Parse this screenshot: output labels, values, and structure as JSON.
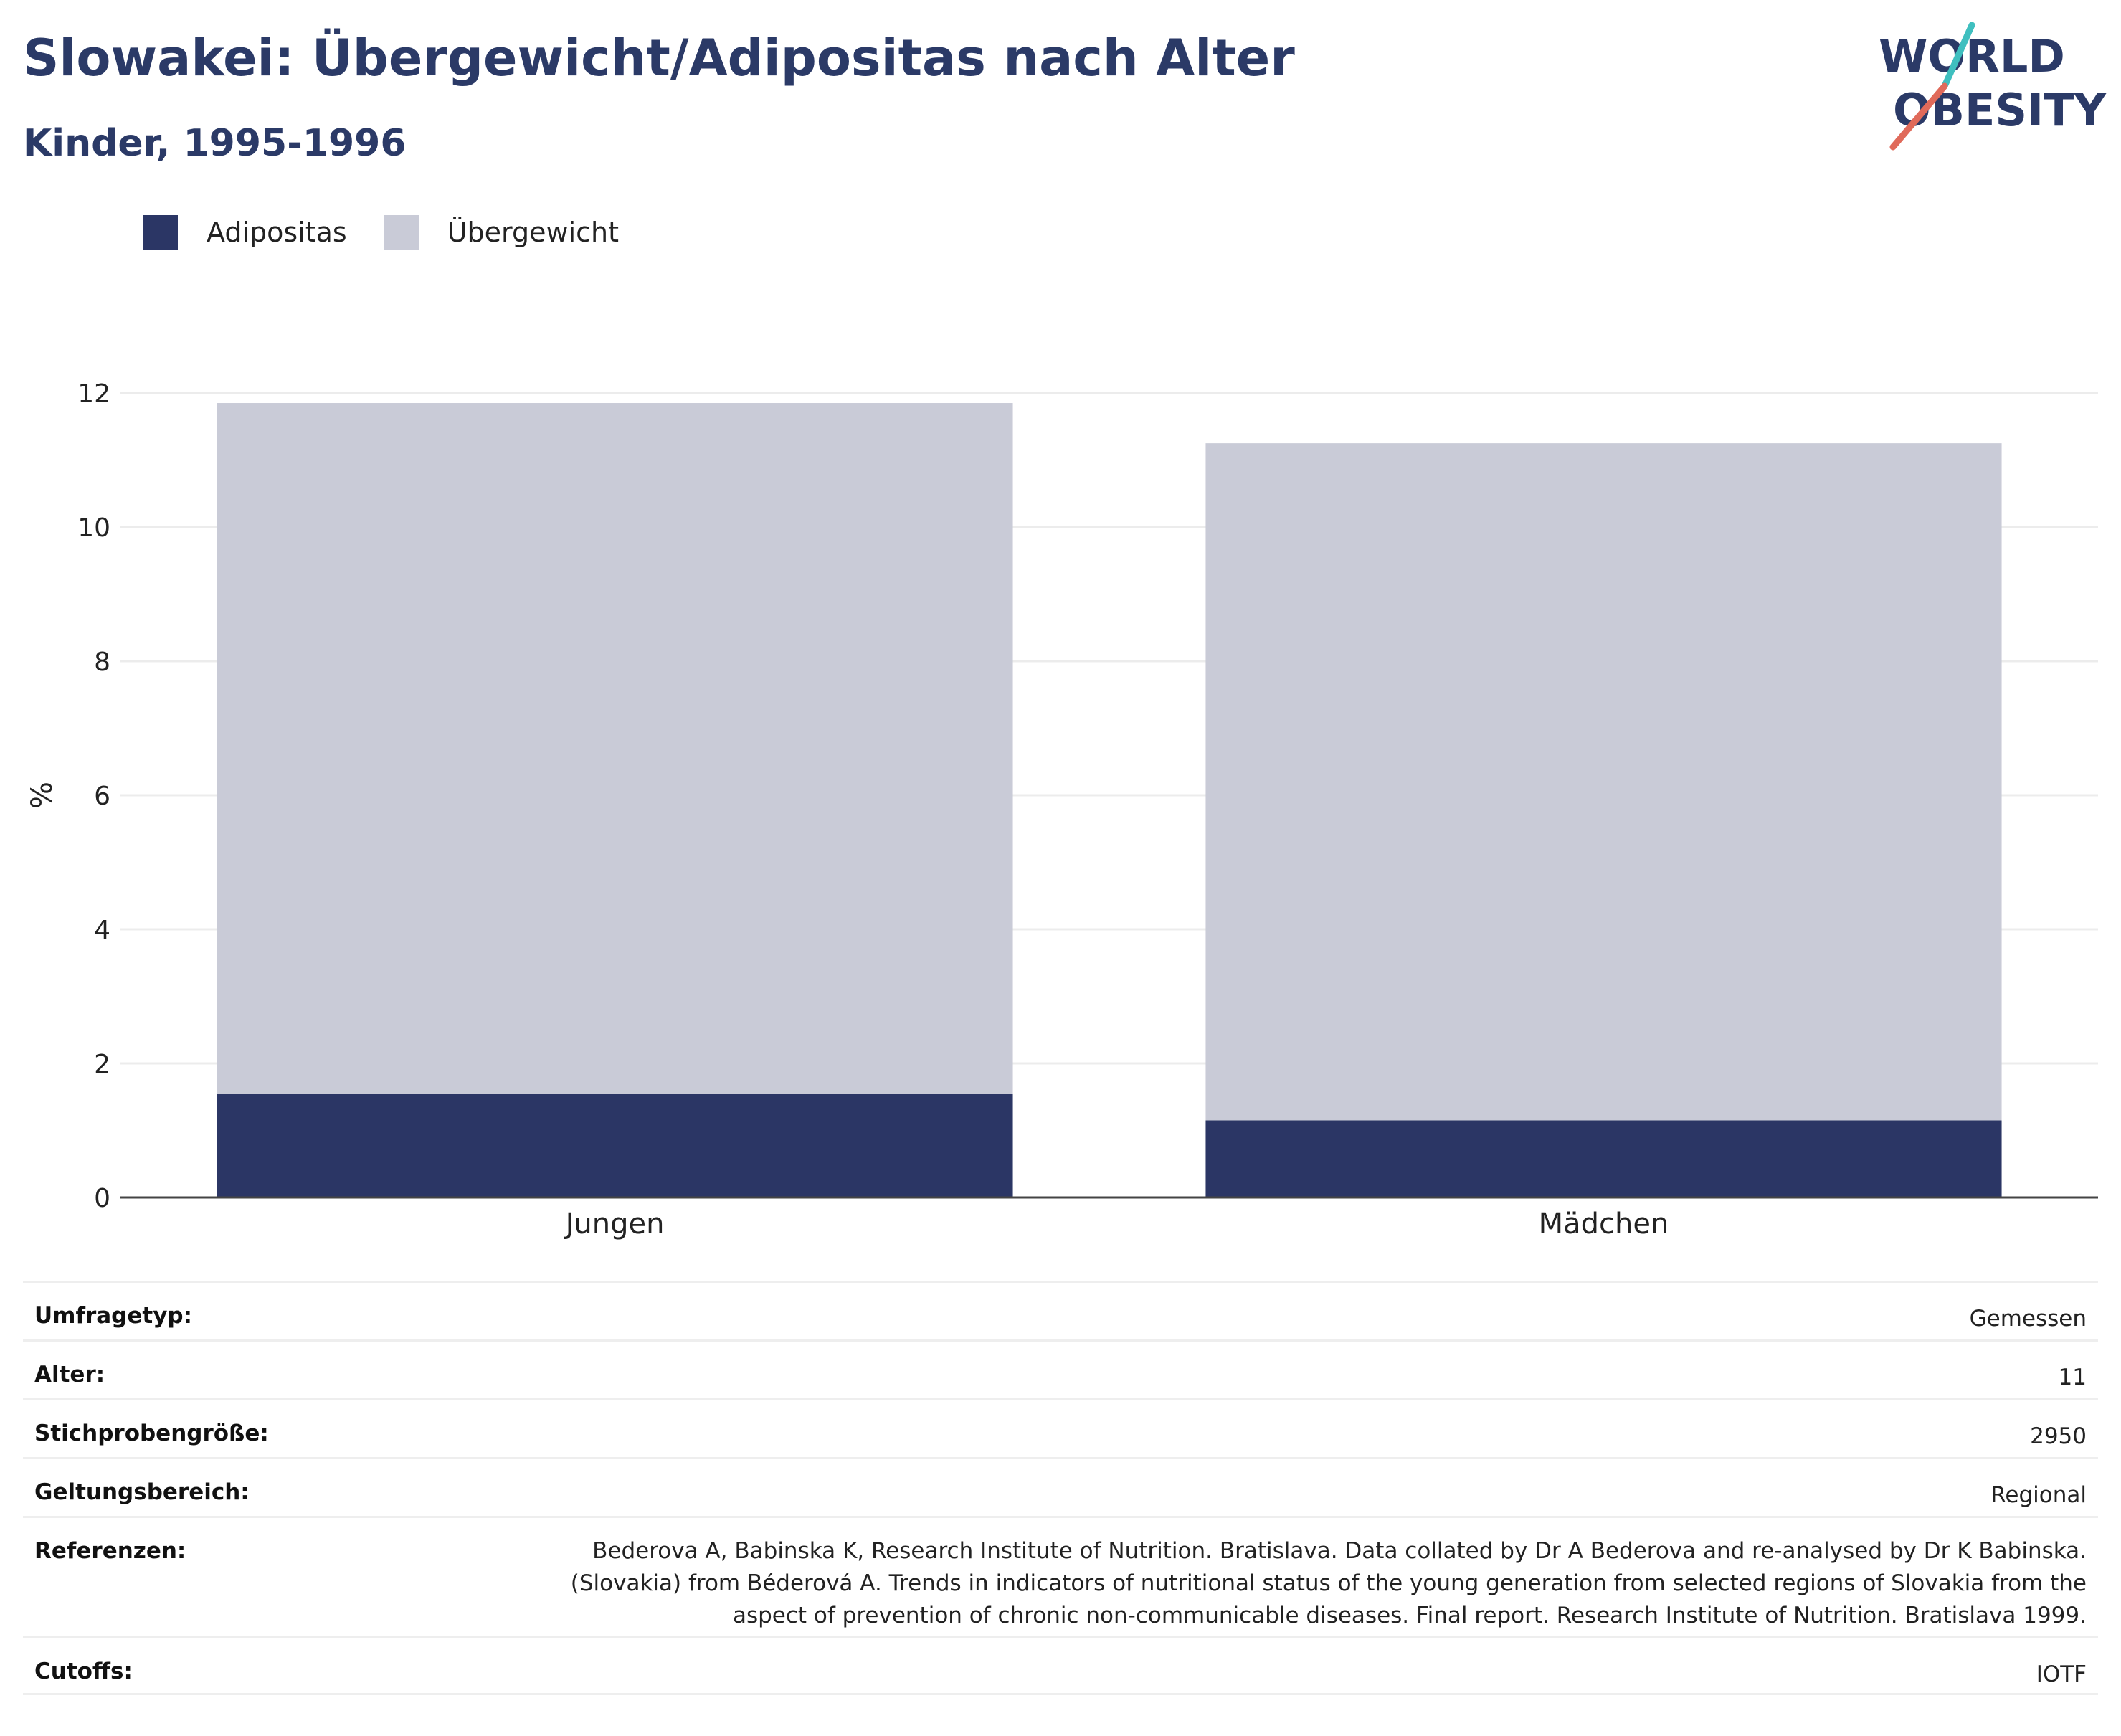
{
  "header": {
    "title": "Slowakei: Übergewicht/Adipositas nach Alter",
    "subtitle": "Kinder, 1995-1996"
  },
  "logo": {
    "line1": "WORLD",
    "line2": "OBESITY"
  },
  "colors": {
    "adipositas": "#2b3665",
    "uebergewicht": "#c9cbd7",
    "heading": "#2b3a67",
    "logo_teal": "#3fbfbf",
    "logo_coral": "#e06a5a"
  },
  "chart_data": {
    "type": "bar",
    "stacked": true,
    "categories": [
      "Jungen",
      "Mädchen"
    ],
    "series": [
      {
        "name": "Adipositas",
        "values": [
          1.55,
          1.15
        ]
      },
      {
        "name": "Übergewicht",
        "values": [
          10.3,
          10.1
        ]
      }
    ],
    "ylabel": "%",
    "ylim": [
      0,
      12
    ],
    "yticks": [
      0,
      2,
      4,
      6,
      8,
      10,
      12
    ],
    "grid": true,
    "legend_position": "top-left"
  },
  "info": {
    "rows": [
      {
        "label": "Umfragetyp:",
        "value": "Gemessen"
      },
      {
        "label": "Alter:",
        "value": "11"
      },
      {
        "label": "Stichprobengröße:",
        "value": "2950"
      },
      {
        "label": "Geltungsbereich:",
        "value": "Regional"
      },
      {
        "label": "Referenzen:",
        "value": "Bederova A, Babinska K, Research Institute of Nutrition. Bratislava. Data collated by Dr A Bederova and re-analysed by Dr K Babinska. (Slovakia) from Béderová A. Trends in indicators of nutritional status of the young generation from selected regions of Slovakia from the aspect of prevention of chronic non-communicable diseases. Final report. Research Institute of Nutrition. Bratislava 1999."
      },
      {
        "label": "Cutoffs:",
        "value": "IOTF"
      }
    ]
  }
}
